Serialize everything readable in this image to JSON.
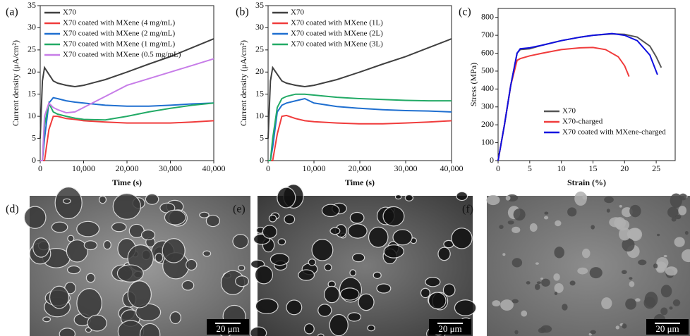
{
  "chart_data": [
    {
      "type": "line",
      "panel_label": "(a)",
      "x_label": "Time (s)",
      "y_label": "Current density (μA/cm²)",
      "xlim": [
        0,
        40000
      ],
      "ylim": [
        0,
        35
      ],
      "xticks": [
        0,
        {
          "value": 10000,
          "label": "10,000"
        },
        {
          "value": 20000,
          "label": "20,000"
        },
        {
          "value": 30000,
          "label": "30,000"
        },
        {
          "value": 40000,
          "label": "40,000"
        }
      ],
      "yticks": [
        0,
        5,
        10,
        15,
        20,
        25,
        30,
        35
      ],
      "legend": "upper left",
      "x": [
        0,
        500,
        1000,
        2000,
        3000,
        4000,
        6000,
        8000,
        10000,
        15000,
        20000,
        25000,
        30000,
        35000,
        40000
      ],
      "series": [
        {
          "name": "X70",
          "color": "#404040",
          "values": [
            5,
            18,
            21,
            19.5,
            18,
            17.5,
            17,
            16.7,
            17,
            18.3,
            20,
            21.8,
            23.5,
            25.5,
            27.5
          ]
        },
        {
          "name": "X70 coated with MXene (4 mg/mL)",
          "color": "#f03c3c",
          "values": [
            0,
            0,
            0,
            7,
            10,
            10,
            9.5,
            9.3,
            9,
            8.7,
            8.5,
            8.5,
            8.5,
            8.7,
            9
          ]
        },
        {
          "name": "X70 coated with MXene (2 mg/mL)",
          "color": "#1f6fd0",
          "values": [
            0,
            0,
            5,
            13,
            14.2,
            14,
            13.5,
            13.2,
            13,
            12.5,
            12.3,
            12.3,
            12.5,
            12.8,
            13
          ]
        },
        {
          "name": "X70 coated with MXene (1 mg/mL)",
          "color": "#22aa66",
          "values": [
            0,
            0,
            8,
            13,
            11,
            10.5,
            10,
            9.6,
            9.3,
            9.2,
            10,
            11,
            11.8,
            12.5,
            13
          ]
        },
        {
          "name": "X70 coated with MXene (0.5 mg/mL)",
          "color": "#c77de8",
          "values": [
            0,
            0,
            10,
            13,
            12,
            11.5,
            10.8,
            11,
            12,
            14.5,
            17,
            18.5,
            20,
            21.5,
            23
          ]
        }
      ]
    },
    {
      "type": "line",
      "panel_label": "(b)",
      "x_label": "Time (s)",
      "y_label": "Current density (μA/cm²)",
      "xlim": [
        0,
        40000
      ],
      "ylim": [
        0,
        35
      ],
      "xticks": [
        0,
        {
          "value": 10000,
          "label": "10,000"
        },
        {
          "value": 20000,
          "label": "20,000"
        },
        {
          "value": 30000,
          "label": "30,000"
        },
        {
          "value": 40000,
          "label": "40,000"
        }
      ],
      "yticks": [
        0,
        5,
        10,
        15,
        20,
        25,
        30,
        35
      ],
      "legend": "upper left",
      "x": [
        0,
        500,
        1000,
        2000,
        3000,
        4000,
        6000,
        8000,
        10000,
        15000,
        20000,
        25000,
        30000,
        35000,
        40000
      ],
      "series": [
        {
          "name": "X70",
          "color": "#404040",
          "values": [
            5,
            18,
            21,
            19.5,
            18,
            17.5,
            17,
            16.7,
            17,
            18.3,
            20,
            21.8,
            23.5,
            25.5,
            27.5
          ]
        },
        {
          "name": "X70 coated with MXene (1L)",
          "color": "#f03c3c",
          "values": [
            0,
            0,
            0,
            6,
            10,
            10.2,
            9.5,
            9,
            8.8,
            8.5,
            8.3,
            8.3,
            8.5,
            8.7,
            9
          ]
        },
        {
          "name": "X70 coated with MXene (2L)",
          "color": "#1f6fd0",
          "values": [
            0,
            0,
            3,
            11,
            12.5,
            13,
            13.5,
            14,
            13,
            12.2,
            11.8,
            11.5,
            11.3,
            11.2,
            11
          ]
        },
        {
          "name": "X70 coated with MXene (3L)",
          "color": "#22aa66",
          "values": [
            0,
            0,
            5,
            12,
            14,
            14.5,
            15,
            15,
            14.8,
            14.3,
            14,
            13.8,
            13.6,
            13.5,
            13.5
          ]
        }
      ]
    },
    {
      "type": "line",
      "panel_label": "(c)",
      "x_label": "Strain (%)",
      "y_label": "Stress (MPa)",
      "xlim": [
        0,
        28
      ],
      "ylim": [
        0,
        850
      ],
      "xticks": [
        0,
        5,
        10,
        15,
        20,
        25
      ],
      "yticks": [
        0,
        100,
        200,
        300,
        400,
        500,
        600,
        700,
        800
      ],
      "legend": "lower right",
      "series": [
        {
          "name": "X70",
          "color": "#555555",
          "x": [
            0,
            1,
            2,
            3,
            3.5,
            5,
            7,
            10,
            13,
            15,
            18,
            20,
            22,
            24,
            25,
            25.8
          ],
          "values": [
            0,
            200,
            420,
            600,
            620,
            625,
            645,
            670,
            690,
            700,
            708,
            705,
            690,
            640,
            580,
            520
          ]
        },
        {
          "name": "X70-charged",
          "color": "#f03c3c",
          "x": [
            0,
            1,
            2,
            3,
            3.5,
            5,
            7,
            10,
            13,
            15,
            17,
            19,
            20,
            20.7
          ],
          "values": [
            0,
            200,
            420,
            560,
            570,
            585,
            600,
            620,
            630,
            632,
            620,
            580,
            530,
            470
          ]
        },
        {
          "name": "X70 coated with MXene-charged",
          "color": "#1010e0",
          "x": [
            0,
            1,
            2,
            3,
            3.5,
            5,
            7,
            10,
            13,
            15,
            18,
            20,
            22,
            24,
            25.2
          ],
          "values": [
            0,
            200,
            420,
            600,
            625,
            630,
            645,
            670,
            690,
            700,
            710,
            700,
            670,
            590,
            480
          ]
        }
      ]
    }
  ],
  "images": [
    {
      "panel_label": "(d)",
      "scale_bar": "20 μm"
    },
    {
      "panel_label": "(e)",
      "scale_bar": "20 μm"
    },
    {
      "panel_label": "(f)",
      "scale_bar": "20 μm"
    }
  ]
}
